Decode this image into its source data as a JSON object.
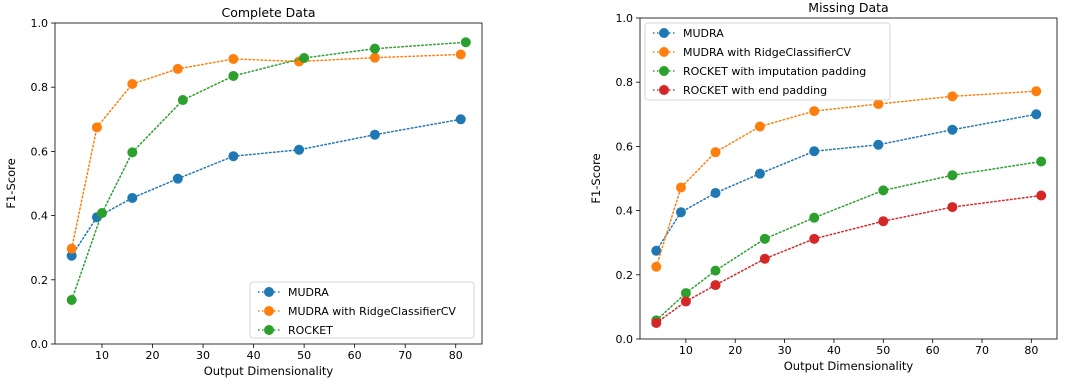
{
  "chart_data": [
    {
      "type": "line",
      "title": "Complete Data",
      "xlabel": "Output Dimensionality",
      "ylabel": "F1-Score",
      "xlim": [
        0.7,
        85.2
      ],
      "ylim": [
        0.0,
        1.0
      ],
      "xticks": [
        10,
        20,
        30,
        40,
        50,
        60,
        70,
        80
      ],
      "yticks": [
        0.0,
        0.2,
        0.4,
        0.6,
        0.8,
        1.0
      ],
      "xtick_labels": [
        "10",
        "20",
        "30",
        "40",
        "50",
        "60",
        "70",
        "80"
      ],
      "ytick_labels": [
        "0.0",
        "0.2",
        "0.4",
        "0.6",
        "0.8",
        "1.0"
      ],
      "grid": false,
      "legend_position": "lower-right",
      "series": [
        {
          "name": "MUDRA",
          "color": "#1f77b4",
          "x": [
            4,
            9,
            16,
            25,
            36,
            49,
            64,
            81
          ],
          "y": [
            0.275,
            0.395,
            0.455,
            0.515,
            0.585,
            0.605,
            0.652,
            0.7
          ]
        },
        {
          "name": "MUDRA with RidgeClassifierCV",
          "color": "#ff7f0e",
          "x": [
            4,
            9,
            16,
            25,
            36,
            49,
            64,
            81
          ],
          "y": [
            0.297,
            0.675,
            0.81,
            0.857,
            0.888,
            0.88,
            0.892,
            0.902
          ]
        },
        {
          "name": "ROCKET",
          "color": "#2ca02c",
          "x": [
            4,
            10,
            16,
            26,
            36,
            50,
            64,
            82
          ],
          "y": [
            0.137,
            0.408,
            0.597,
            0.76,
            0.835,
            0.891,
            0.92,
            0.94
          ]
        }
      ]
    },
    {
      "type": "line",
      "title": "Missing Data",
      "xlabel": "Output Dimensionality",
      "ylabel": "F1-Score",
      "xlim": [
        0.7,
        85.2
      ],
      "ylim": [
        0.0,
        1.0
      ],
      "xticks": [
        10,
        20,
        30,
        40,
        50,
        60,
        70,
        80
      ],
      "yticks": [
        0.0,
        0.2,
        0.4,
        0.6,
        0.8,
        1.0
      ],
      "xtick_labels": [
        "10",
        "20",
        "30",
        "40",
        "50",
        "60",
        "70",
        "80"
      ],
      "ytick_labels": [
        "0.0",
        "0.2",
        "0.4",
        "0.6",
        "0.8",
        "1.0"
      ],
      "grid": false,
      "legend_position": "upper-left",
      "series": [
        {
          "name": "MUDRA",
          "color": "#1f77b4",
          "x": [
            4,
            9,
            16,
            25,
            36,
            49,
            64,
            81
          ],
          "y": [
            0.275,
            0.395,
            0.455,
            0.515,
            0.585,
            0.605,
            0.652,
            0.7
          ]
        },
        {
          "name": "MUDRA with RidgeClassifierCV",
          "color": "#ff7f0e",
          "x": [
            4,
            9,
            16,
            25,
            36,
            49,
            64,
            81
          ],
          "y": [
            0.225,
            0.472,
            0.582,
            0.662,
            0.71,
            0.732,
            0.756,
            0.772
          ]
        },
        {
          "name": "ROCKET with imputation padding",
          "color": "#2ca02c",
          "x": [
            4,
            10,
            16,
            26,
            36,
            50,
            64,
            82
          ],
          "y": [
            0.058,
            0.143,
            0.213,
            0.312,
            0.378,
            0.463,
            0.51,
            0.553
          ]
        },
        {
          "name": "ROCKET with end padding",
          "color": "#d62728",
          "x": [
            4,
            10,
            16,
            26,
            36,
            50,
            64,
            82
          ],
          "y": [
            0.05,
            0.117,
            0.168,
            0.25,
            0.312,
            0.367,
            0.411,
            0.447
          ]
        }
      ]
    }
  ]
}
